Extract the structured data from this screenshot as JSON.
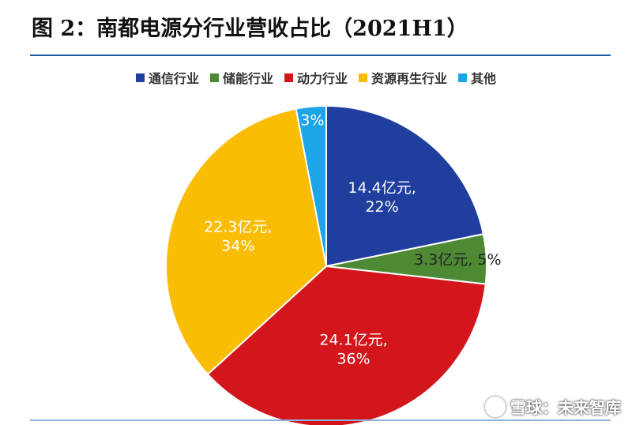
{
  "title": "图 2：南都电源分行业营收占比（2021H1）",
  "watermark": "雪球：未来智库",
  "chart_data": {
    "type": "pie",
    "title": "图 2：南都电源分行业营收占比（2021H1）",
    "legend_position": "top",
    "slices": [
      {
        "name": "通信行业",
        "value": 14.4,
        "percent": 22,
        "label_lines": [
          "14.4亿元,",
          "22%"
        ],
        "color": "#1f3e9e"
      },
      {
        "name": "储能行业",
        "value": 3.3,
        "percent": 5,
        "label_lines": [
          "3.3亿元, 5%"
        ],
        "color": "#4e8a33"
      },
      {
        "name": "动力行业",
        "value": 24.1,
        "percent": 36,
        "label_lines": [
          "24.1亿元,",
          "36%"
        ],
        "color": "#d2161c"
      },
      {
        "name": "资源再生行业",
        "value": 22.3,
        "percent": 34,
        "label_lines": [
          "22.3亿元,",
          "34%"
        ],
        "color": "#fbbc04"
      },
      {
        "name": "其他",
        "value": 2.0,
        "percent": 3,
        "label_lines": [
          "3%"
        ],
        "color": "#1ca5e8"
      }
    ]
  }
}
